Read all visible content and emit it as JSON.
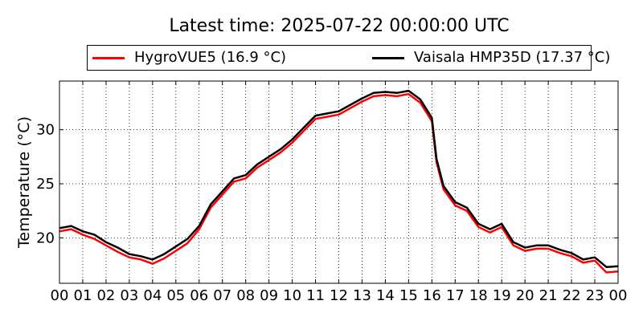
{
  "chart_data": {
    "type": "line",
    "title": "Latest time: 2025-07-22 00:00:00 UTC",
    "xlabel": "",
    "ylabel": "Temperature (°C)",
    "x_ticks": [
      "00",
      "01",
      "02",
      "03",
      "04",
      "05",
      "06",
      "07",
      "08",
      "09",
      "10",
      "11",
      "12",
      "13",
      "14",
      "15",
      "16",
      "17",
      "18",
      "19",
      "20",
      "21",
      "22",
      "23",
      "00"
    ],
    "y_ticks": [
      20,
      25,
      30
    ],
    "xlim": [
      0,
      24
    ],
    "ylim": [
      15.8,
      34.5
    ],
    "grid": true,
    "legend_position": "top",
    "series": [
      {
        "name": "HygroVUE5 (16.9 °C)",
        "color": "#ff0000",
        "x": [
          0,
          0.5,
          1,
          1.5,
          2,
          2.5,
          3,
          3.5,
          4,
          4.5,
          5,
          5.5,
          6,
          6.5,
          7,
          7.5,
          8,
          8.5,
          9,
          9.5,
          10,
          10.5,
          11,
          11.5,
          12,
          12.5,
          13,
          13.5,
          14,
          14.5,
          15,
          15.5,
          16,
          16.2,
          16.5,
          17,
          17.5,
          18,
          18.5,
          19,
          19.5,
          20,
          20.5,
          21,
          21.5,
          22,
          22.5,
          23,
          23.5,
          24
        ],
        "y": [
          20.6,
          20.8,
          20.3,
          19.9,
          19.3,
          18.7,
          18.2,
          18.0,
          17.6,
          18.1,
          18.8,
          19.5,
          20.8,
          22.8,
          24.0,
          25.2,
          25.5,
          26.5,
          27.2,
          27.9,
          28.8,
          29.9,
          31.0,
          31.2,
          31.4,
          32.0,
          32.6,
          33.1,
          33.2,
          33.1,
          33.3,
          32.5,
          30.8,
          27.0,
          24.5,
          23.0,
          22.5,
          21.0,
          20.5,
          21.0,
          19.3,
          18.8,
          19.0,
          19.0,
          18.6,
          18.3,
          17.7,
          17.9,
          16.8,
          16.9
        ]
      },
      {
        "name": "Vaisala HMP35D (17.37 °C)",
        "color": "#000000",
        "x": [
          0,
          0.5,
          1,
          1.5,
          2,
          2.5,
          3,
          3.5,
          4,
          4.5,
          5,
          5.5,
          6,
          6.5,
          7,
          7.5,
          8,
          8.5,
          9,
          9.5,
          10,
          10.5,
          11,
          11.5,
          12,
          12.5,
          13,
          13.5,
          14,
          14.5,
          15,
          15.5,
          16,
          16.2,
          16.5,
          17,
          17.5,
          18,
          18.5,
          19,
          19.5,
          20,
          20.5,
          21,
          21.5,
          22,
          22.5,
          23,
          23.5,
          24
        ],
        "y": [
          20.9,
          21.1,
          20.6,
          20.3,
          19.6,
          19.1,
          18.5,
          18.3,
          18.0,
          18.5,
          19.2,
          19.9,
          21.1,
          23.1,
          24.3,
          25.5,
          25.8,
          26.8,
          27.5,
          28.2,
          29.1,
          30.2,
          31.3,
          31.5,
          31.7,
          32.3,
          32.9,
          33.4,
          33.5,
          33.4,
          33.6,
          32.8,
          31.1,
          27.3,
          24.8,
          23.3,
          22.8,
          21.3,
          20.8,
          21.3,
          19.6,
          19.1,
          19.3,
          19.3,
          18.9,
          18.6,
          18.0,
          18.2,
          17.3,
          17.37
        ]
      }
    ]
  }
}
